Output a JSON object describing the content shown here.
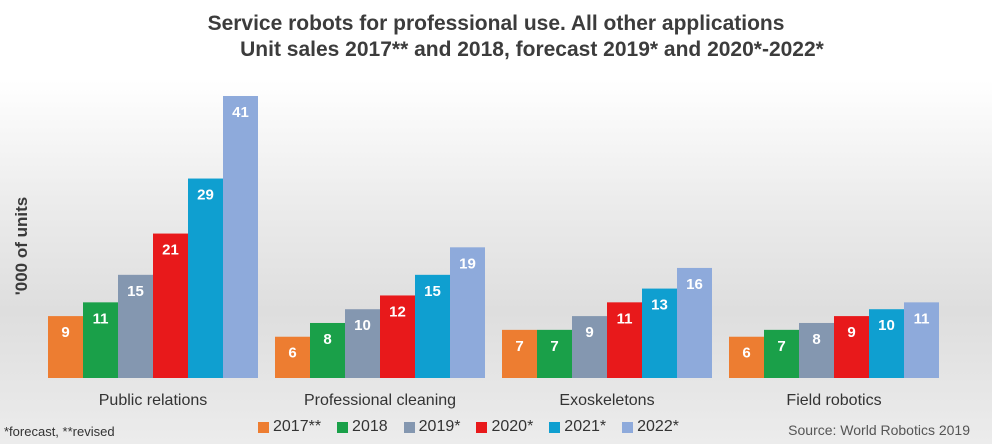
{
  "chart_data": {
    "type": "bar",
    "title_line1": "Service robots for professional use. All other applications",
    "title_line2": "Unit sales 2017** and 2018, forecast 2019* and 2020*-2022*",
    "ylabel": "'000 of units",
    "categories": [
      "Public relations",
      "Professional cleaning",
      "Exoskeletons",
      "Field robotics"
    ],
    "series": [
      {
        "name": "2017**",
        "color": "#ed7d31",
        "values": [
          9,
          6,
          7,
          6
        ]
      },
      {
        "name": "2018",
        "color": "#1aa049",
        "values": [
          11,
          8,
          7,
          7
        ]
      },
      {
        "name": "2019*",
        "color": "#8497b0",
        "values": [
          15,
          10,
          9,
          8
        ]
      },
      {
        "name": "2020*",
        "color": "#e8191b",
        "values": [
          21,
          12,
          11,
          9
        ]
      },
      {
        "name": "2021*",
        "color": "#0f9fd0",
        "values": [
          29,
          15,
          13,
          10
        ]
      },
      {
        "name": "2022*",
        "color": "#8eaadb",
        "values": [
          41,
          19,
          16,
          11
        ]
      }
    ],
    "ylim": [
      0,
      41
    ],
    "grid": false,
    "legend_position": "bottom"
  },
  "footnote": "*forecast, **revised",
  "source": "Source: World Robotics 2019"
}
